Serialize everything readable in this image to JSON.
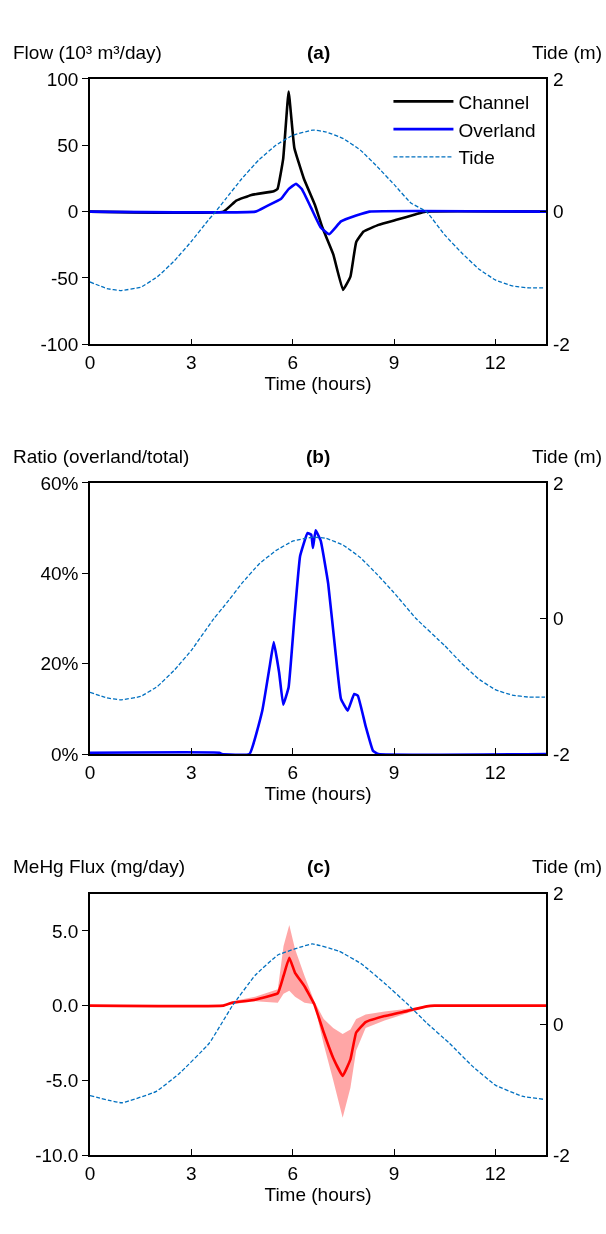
{
  "chart_data": [
    {
      "type": "line",
      "title": "(a)",
      "ylabel": "Flow (10³ m³/day)",
      "y2label": "Tide (m)",
      "xlabel": "Time (hours)",
      "xlim": [
        0,
        13.5
      ],
      "xticks": [
        0,
        3,
        6,
        9,
        12
      ],
      "ylim": [
        -100,
        100
      ],
      "yticks": [
        -100,
        -50,
        0,
        50,
        100
      ],
      "y2lim": [
        -2,
        2
      ],
      "y2ticks": [
        -2,
        0,
        2
      ],
      "legend": "top right",
      "series": [
        {
          "name": "Channel",
          "color": "#000000",
          "line_style": "solid",
          "x": [
            0,
            3.95,
            4.33,
            4.78,
            5.44,
            5.55,
            5.72,
            5.88,
            6.05,
            6.33,
            6.66,
            6.88,
            7.2,
            7.49,
            7.71,
            7.88,
            8.1,
            8.54,
            9.1,
            9.65,
            9.93,
            13.5
          ],
          "values": [
            0,
            0,
            8.3,
            12.6,
            15.4,
            17,
            40,
            90.6,
            48,
            25,
            5,
            -12,
            -32,
            -59,
            -49,
            -23,
            -15,
            -10,
            -6,
            -2,
            0,
            0
          ]
        },
        {
          "name": "Overland",
          "color": "#0000ff",
          "line_style": "solid",
          "x": [
            0,
            4.9,
            5.22,
            5.66,
            5.88,
            6.1,
            6.27,
            6.55,
            6.83,
            7.08,
            7.43,
            7.88,
            8.27,
            13.5
          ],
          "values": [
            0,
            0,
            4,
            9.7,
            17,
            21,
            17,
            2.6,
            -12,
            -17,
            -7.4,
            -3,
            0,
            0
          ]
        },
        {
          "name": "Tide",
          "color": "#0070c0",
          "line_style": "dashed",
          "axis": "y2",
          "x": [
            0,
            0.5,
            0.9,
            1.5,
            2,
            2.5,
            3,
            3.5,
            3.72,
            4,
            4.5,
            5,
            5.5,
            6,
            6.6,
            7,
            7.5,
            8,
            8.5,
            9,
            9.5,
            9.96,
            10.5,
            11,
            11.5,
            12,
            12.5,
            13,
            13.47
          ],
          "values": [
            -1.06,
            -1.16,
            -1.19,
            -1.14,
            -0.98,
            -0.74,
            -0.45,
            -0.13,
            0,
            0.18,
            0.5,
            0.78,
            1.0,
            1.15,
            1.23,
            1.2,
            1.1,
            0.93,
            0.68,
            0.41,
            0.13,
            0,
            -0.35,
            -0.62,
            -0.86,
            -1.03,
            -1.12,
            -1.15,
            -1.15
          ]
        }
      ]
    },
    {
      "type": "line",
      "title": "(b)",
      "ylabel": "Ratio (overland/total)",
      "y2label": "Tide (m)",
      "xlabel": "Time (hours)",
      "xlim": [
        0,
        13.5
      ],
      "xticks": [
        0,
        3,
        6,
        9,
        12
      ],
      "ylim": [
        0,
        60
      ],
      "yticks": [
        {
          "value": 0,
          "label": "0%"
        },
        {
          "value": 20,
          "label": "20%"
        },
        {
          "value": 40,
          "label": "40%"
        },
        {
          "value": 60,
          "label": "60%"
        }
      ],
      "y2lim": [
        -2,
        2
      ],
      "y2ticks": [
        -2,
        0,
        2
      ],
      "series": [
        {
          "color": "#0000ff",
          "line_style": "solid",
          "x": [
            0,
            3.83,
            3.9,
            4.72,
            5.1,
            5.33,
            5.44,
            5.6,
            5.72,
            5.88,
            6.05,
            6.22,
            6.44,
            6.55,
            6.6,
            6.68,
            6.83,
            7.05,
            7.27,
            7.43,
            7.63,
            7.82,
            7.93,
            8.16,
            8.38,
            8.54,
            13.5
          ],
          "values": [
            0.3,
            0.3,
            0,
            0,
            9.6,
            19.9,
            24.8,
            18,
            10.9,
            14.8,
            30,
            43.8,
            48.9,
            48.5,
            45.6,
            49.5,
            47.2,
            37.8,
            22.4,
            12.2,
            9.6,
            13.3,
            12.9,
            6.2,
            0.7,
            0,
            0
          ]
        },
        {
          "color": "#0070c0",
          "line_style": "dashed",
          "axis": "y2",
          "x": [
            0,
            0.5,
            0.9,
            1.5,
            2,
            2.5,
            3,
            3.67,
            4,
            4.5,
            5,
            5.5,
            6,
            6.6,
            7,
            7.5,
            8,
            8.5,
            9,
            9.65,
            10.5,
            11,
            11.5,
            12,
            12.5,
            13,
            13.47
          ],
          "values": [
            -1.09,
            -1.17,
            -1.2,
            -1.15,
            -1.0,
            -0.76,
            -0.47,
            0,
            0.2,
            0.52,
            0.8,
            1.0,
            1.14,
            1.2,
            1.18,
            1.08,
            0.9,
            0.65,
            0.38,
            0,
            -0.4,
            -0.66,
            -0.89,
            -1.05,
            -1.13,
            -1.16,
            -1.16
          ]
        }
      ]
    },
    {
      "type": "line",
      "title": "(c)",
      "ylabel": "MeHg Flux (mg/day)",
      "y2label": "Tide (m)",
      "xlabel": "Time (hours)",
      "xlim": [
        0,
        13.5
      ],
      "xticks": [
        0,
        3,
        6,
        9,
        12
      ],
      "ylim": [
        -10,
        7.5
      ],
      "yticks": [
        {
          "value": -10,
          "label": "-10.0"
        },
        {
          "value": -5,
          "label": "-5.0"
        },
        {
          "value": 0,
          "label": "0.0"
        },
        {
          "value": 5,
          "label": "5.0"
        }
      ],
      "y2lim": [
        -2,
        2
      ],
      "y2ticks": [
        -2,
        0,
        2
      ],
      "series": [
        {
          "color": "#ff0000",
          "line_style": "solid",
          "x": [
            0,
            3.95,
            4.21,
            4.89,
            5.56,
            5.73,
            5.9,
            6.07,
            6.35,
            6.64,
            6.92,
            7.2,
            7.48,
            7.71,
            7.88,
            8.16,
            8.72,
            9.4,
            9.97,
            10.2,
            13.5
          ],
          "values": [
            0,
            0,
            0.2,
            0.4,
            0.83,
            2.0,
            3.2,
            2.2,
            1.3,
            0.1,
            -1.8,
            -3.5,
            -4.7,
            -3.6,
            -1.8,
            -1.1,
            -0.7,
            -0.35,
            -0.05,
            0,
            0
          ],
          "lower": [
            0,
            0,
            0.1,
            0.3,
            0.2,
            0.8,
            1.0,
            0.6,
            0.2,
            0.1,
            -2.6,
            -5.0,
            -7.5,
            -5.5,
            -3.0,
            -1.5,
            -1.0,
            -0.5,
            -0.1,
            0,
            0
          ],
          "upper": [
            0,
            0,
            0.3,
            0.6,
            1.1,
            4.0,
            5.4,
            3.8,
            2.0,
            0.3,
            -0.9,
            -1.5,
            -1.9,
            -1.6,
            -0.9,
            -0.6,
            -0.4,
            -0.2,
            0,
            0,
            0
          ]
        },
        {
          "color": "#0070c0",
          "line_style": "dashed",
          "axis": "y2",
          "x": [
            0,
            0.94,
            1.95,
            2.63,
            3.53,
            4.21,
            4.89,
            5.56,
            6.58,
            7.37,
            8.05,
            8.72,
            9.4,
            9.97,
            10.64,
            11.32,
            12.0,
            12.79,
            13.46
          ],
          "values": [
            -1.09,
            -1.2,
            -1.03,
            -0.76,
            -0.29,
            0.28,
            0.75,
            1.06,
            1.23,
            1.12,
            0.92,
            0.63,
            0.31,
            0.02,
            -0.29,
            -0.64,
            -0.93,
            -1.1,
            -1.15
          ]
        }
      ]
    }
  ]
}
